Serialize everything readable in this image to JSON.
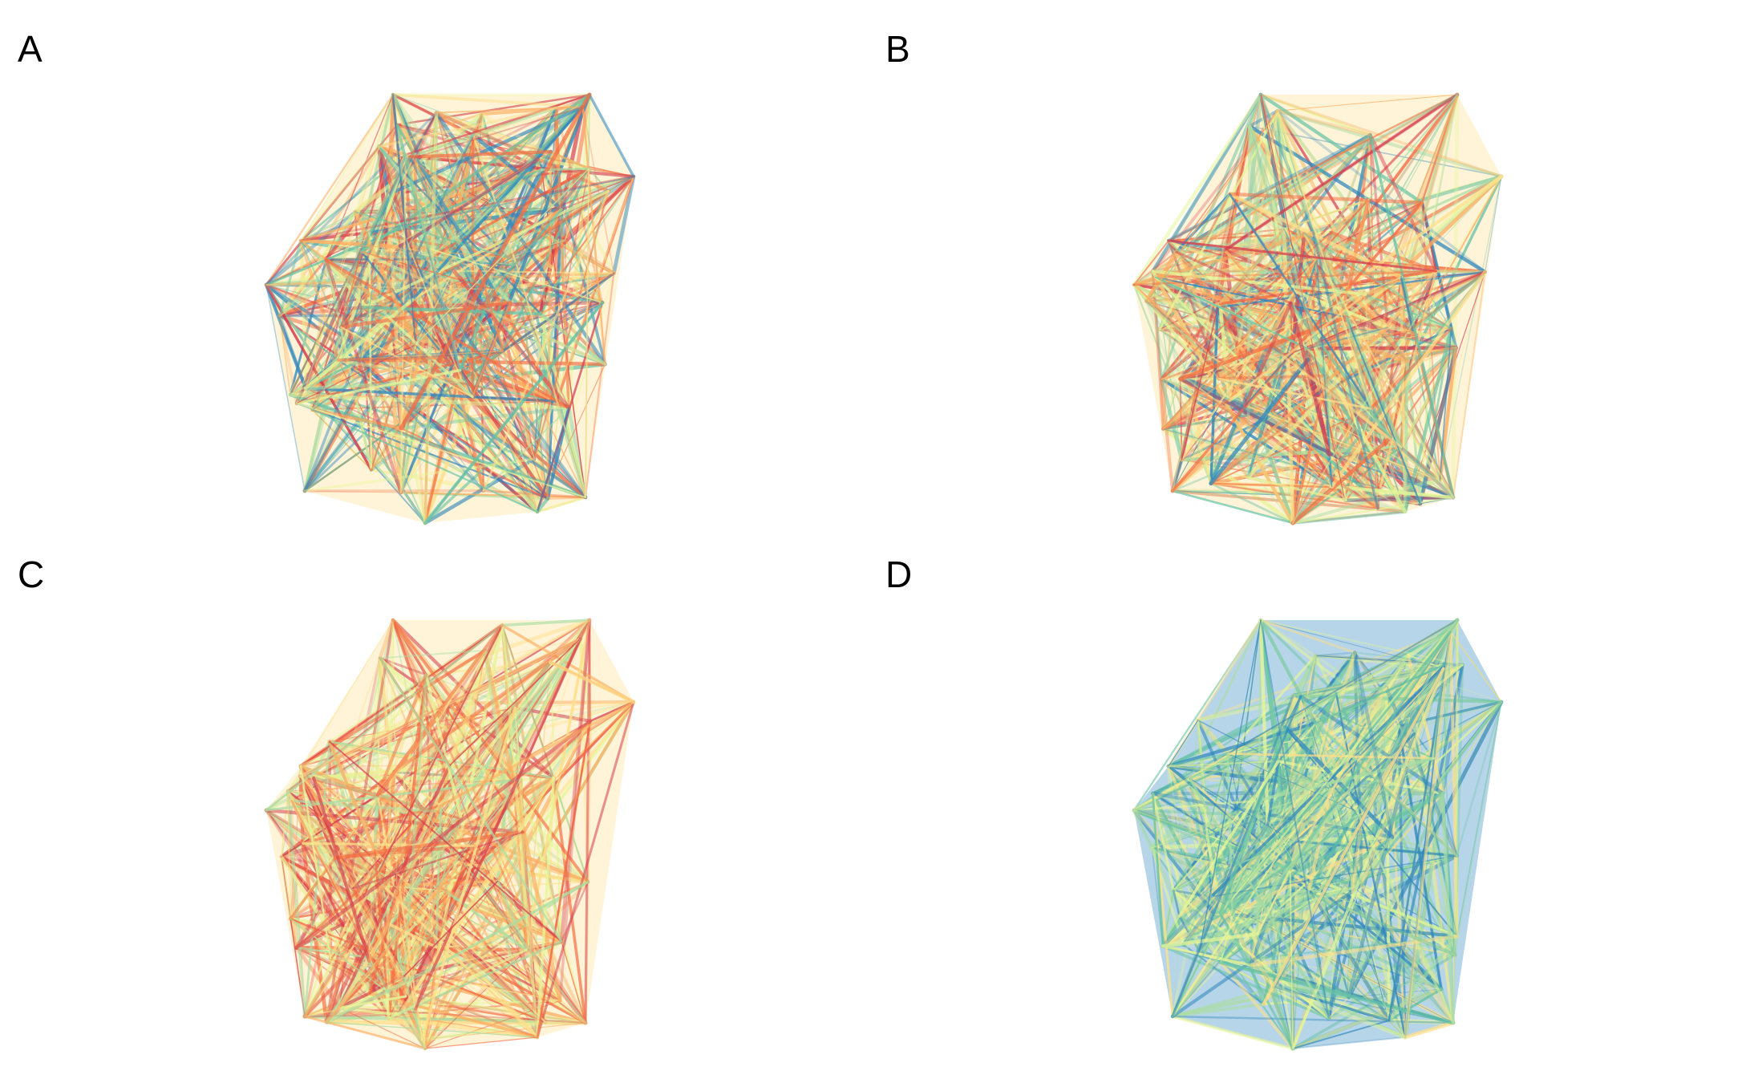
{
  "panels": [
    {
      "label": "A",
      "seed": 11,
      "palette": [
        "#d53e4f",
        "#f46d43",
        "#fdae61",
        "#fee08b",
        "#e6f598",
        "#abdda4",
        "#66c2a5",
        "#3288bd"
      ]
    },
    {
      "label": "B",
      "seed": 23,
      "palette": [
        "#d53e4f",
        "#f46d43",
        "#fdae61",
        "#fee08b",
        "#e6f598",
        "#abdda4",
        "#66c2a5",
        "#3288bd"
      ]
    },
    {
      "label": "C",
      "seed": 37,
      "palette": [
        "#d53e4f",
        "#f46d43",
        "#fdae61",
        "#fee08b",
        "#e6f598",
        "#abdda4"
      ]
    },
    {
      "label": "D",
      "seed": 53,
      "palette": [
        "#e6f598",
        "#abdda4",
        "#66c2a5",
        "#3288bd",
        "#fee08b"
      ]
    }
  ]
}
